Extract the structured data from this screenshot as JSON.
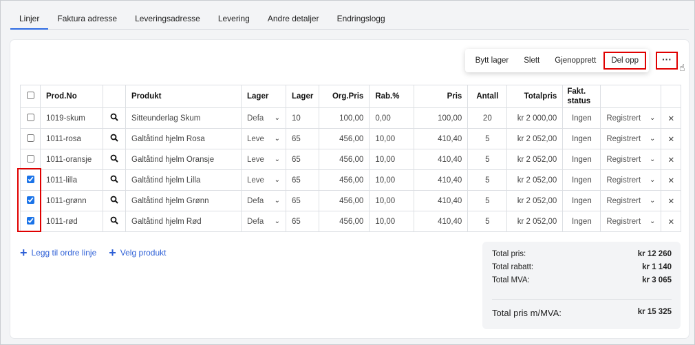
{
  "tabs": [
    "Linjer",
    "Faktura adresse",
    "Leveringsadresse",
    "Levering",
    "Andre detaljer",
    "Endringslogg"
  ],
  "active_tab": "Linjer",
  "more_label": "···",
  "headers": {
    "prod_no": "Prod.No",
    "produkt": "Produkt",
    "lager_select": "Lager",
    "lager": "Lager",
    "org_pris": "Org.Pris",
    "rab": "Rab.%",
    "pris": "Pris",
    "antall": "Antall",
    "totalpris": "Totalpris",
    "fakt_status": "Fakt. status"
  },
  "rows": [
    {
      "checked": false,
      "prod_no": "1019-skum",
      "produkt": "Sitteunderlag Skum",
      "lager_select": "Defa",
      "lager": "10",
      "org_pris": "100,00",
      "rab": "0,00",
      "pris": "100,00",
      "antall": "20",
      "totalpris": "kr 2 000,00",
      "fakt_status": "Ingen",
      "status": "Registrert"
    },
    {
      "checked": false,
      "prod_no": "1011-rosa",
      "produkt": "Galtåtind hjelm Rosa",
      "lager_select": "Leve",
      "lager": "65",
      "org_pris": "456,00",
      "rab": "10,00",
      "pris": "410,40",
      "antall": "5",
      "totalpris": "kr 2 052,00",
      "fakt_status": "Ingen",
      "status": "Registrert"
    },
    {
      "checked": false,
      "prod_no": "1011-oransje",
      "produkt": "Galtåtind hjelm Oransje",
      "lager_select": "Leve",
      "lager": "65",
      "org_pris": "456,00",
      "rab": "10,00",
      "pris": "410,40",
      "antall": "5",
      "totalpris": "kr 2 052,00",
      "fakt_status": "Ingen",
      "status": "Registrert"
    },
    {
      "checked": true,
      "prod_no": "1011-lilla",
      "produkt": "Galtåtind hjelm Lilla",
      "lager_select": "Leve",
      "lager": "65",
      "org_pris": "456,00",
      "rab": "10,00",
      "pris": "410,40",
      "antall": "5",
      "totalpris": "kr 2 052,00",
      "fakt_status": "Ingen",
      "status": "Registrert"
    },
    {
      "checked": true,
      "prod_no": "1011-grønn",
      "produkt": "Galtåtind hjelm Grønn",
      "lager_select": "Defa",
      "lager": "65",
      "org_pris": "456,00",
      "rab": "10,00",
      "pris": "410,40",
      "antall": "5",
      "totalpris": "kr 2 052,00",
      "fakt_status": "Ingen",
      "status": "Registrert"
    },
    {
      "checked": true,
      "prod_no": "1011-rød",
      "produkt": "Galtåtind hjelm Rød",
      "lager_select": "Defa",
      "lager": "65",
      "org_pris": "456,00",
      "rab": "10,00",
      "pris": "410,40",
      "antall": "5",
      "totalpris": "kr 2 052,00",
      "fakt_status": "Ingen",
      "status": "Registrert"
    }
  ],
  "menu": [
    "Bytt lager",
    "Slett",
    "Gjenopprett",
    "Del opp"
  ],
  "links": {
    "add_line": "Legg til ordre linje",
    "choose_product": "Velg produkt"
  },
  "summary": {
    "total_pris_label": "Total pris:",
    "total_pris": "kr 12 260",
    "total_rabatt_label": "Total rabatt:",
    "total_rabatt": "kr 1 140",
    "total_mva_label": "Total MVA:",
    "total_mva": "kr 3 065",
    "grand_label": "Total pris m/MVA:",
    "grand": "kr 15 325"
  },
  "colors": {
    "accent": "#2d6ae3",
    "highlight": "#e00000"
  }
}
